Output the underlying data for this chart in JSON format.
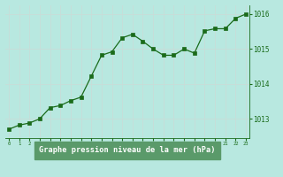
{
  "x": [
    0,
    1,
    2,
    3,
    4,
    5,
    6,
    7,
    8,
    9,
    10,
    11,
    12,
    13,
    14,
    15,
    16,
    17,
    18,
    19,
    20,
    21,
    22,
    23
  ],
  "y": [
    1012.7,
    1012.82,
    1012.88,
    1013.0,
    1013.32,
    1013.38,
    1013.52,
    1013.62,
    1014.22,
    1014.82,
    1014.92,
    1015.32,
    1015.42,
    1015.22,
    1015.0,
    1014.82,
    1014.82,
    1015.0,
    1014.88,
    1015.52,
    1015.58,
    1015.58,
    1015.88,
    1016.0
  ],
  "line_color": "#1a6b1a",
  "marker_color": "#1a6b1a",
  "bg_color": "#b8e8e0",
  "grid_color": "#c8ddd8",
  "xlabel": "Graphe pression niveau de la mer (hPa)",
  "xlabel_color": "#1a6b1a",
  "xlabel_bg": "#5a9a6a",
  "tick_color": "#1a6b1a",
  "yticks": [
    1013,
    1014,
    1015,
    1016
  ],
  "ylim": [
    1012.45,
    1016.25
  ],
  "xlim": [
    -0.3,
    23.3
  ],
  "figsize": [
    3.2,
    2.0
  ],
  "dpi": 100
}
